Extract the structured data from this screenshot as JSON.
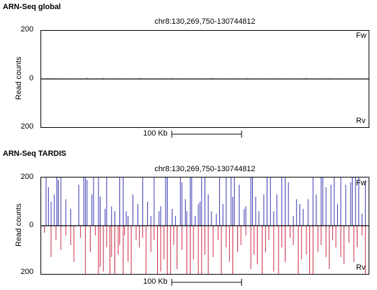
{
  "chart_data": [
    {
      "type": "bar",
      "title": "ARN-Seq global",
      "region": "chr8:130,269,750-130744812",
      "ylabel": "Read counts",
      "y_ticks": {
        "top": "200",
        "mid": "0",
        "bottom": "200"
      },
      "strand_labels": {
        "forward": "Fw",
        "reverse": "Rv"
      },
      "ylim": [
        -200,
        200
      ],
      "scale_bar": "100 Kb",
      "colors": {
        "forward": "#1f1fa8",
        "reverse": "#c8102e",
        "baseline": "#000000"
      },
      "series": [
        {
          "name": "Fw",
          "x": [
            0.02,
            0.1,
            0.19,
            0.28,
            0.4,
            0.55,
            0.63,
            0.76,
            0.88,
            0.95
          ],
          "values": [
            3,
            2,
            4,
            2,
            3,
            2,
            3,
            2,
            3,
            2
          ]
        },
        {
          "name": "Rv",
          "x": [
            0.03,
            0.06,
            0.14,
            0.22,
            0.3,
            0.37,
            0.46,
            0.52,
            0.6,
            0.67,
            0.72,
            0.81,
            0.86,
            0.93
          ],
          "values": [
            4,
            3,
            5,
            3,
            4,
            3,
            2,
            4,
            3,
            2,
            3,
            4,
            3,
            2
          ]
        }
      ]
    },
    {
      "type": "bar",
      "title": "ARN-Seq TARDIS",
      "region": "chr8:130,269,750-130744812",
      "ylabel": "Read counts",
      "y_ticks": {
        "top": "200",
        "mid": "0",
        "bottom": "200"
      },
      "strand_labels": {
        "forward": "Fw",
        "reverse": "Rv"
      },
      "ylim": [
        -200,
        200
      ],
      "scale_bar": "100 Kb",
      "colors": {
        "forward": "#1f1fa8",
        "reverse": "#c8102e",
        "baseline": "#000000"
      },
      "series": [
        {
          "name": "Fw",
          "x": [
            0.015,
            0.022,
            0.03,
            0.04,
            0.048,
            0.052,
            0.06,
            0.075,
            0.09,
            0.115,
            0.13,
            0.135,
            0.14,
            0.155,
            0.16,
            0.175,
            0.18,
            0.195,
            0.2,
            0.215,
            0.225,
            0.24,
            0.25,
            0.26,
            0.265,
            0.28,
            0.295,
            0.31,
            0.325,
            0.335,
            0.345,
            0.36,
            0.365,
            0.38,
            0.385,
            0.4,
            0.41,
            0.425,
            0.43,
            0.44,
            0.445,
            0.455,
            0.46,
            0.47,
            0.48,
            0.485,
            0.49,
            0.5,
            0.51,
            0.52,
            0.535,
            0.545,
            0.555,
            0.565,
            0.58,
            0.585,
            0.59,
            0.605,
            0.62,
            0.625,
            0.64,
            0.645,
            0.655,
            0.665,
            0.68,
            0.69,
            0.7,
            0.71,
            0.72,
            0.735,
            0.745,
            0.755,
            0.77,
            0.78,
            0.79,
            0.8,
            0.815,
            0.83,
            0.84,
            0.855,
            0.86,
            0.87,
            0.885,
            0.895,
            0.905,
            0.915,
            0.93,
            0.945,
            0.95,
            0.96,
            0.97,
            0.98,
            0.99
          ],
          "values": [
            200,
            160,
            100,
            130,
            200,
            190,
            200,
            110,
            70,
            170,
            200,
            200,
            190,
            130,
            200,
            200,
            120,
            70,
            200,
            80,
            60,
            200,
            200,
            60,
            40,
            130,
            90,
            200,
            100,
            40,
            200,
            60,
            80,
            200,
            200,
            70,
            40,
            200,
            180,
            110,
            60,
            200,
            200,
            40,
            90,
            100,
            200,
            200,
            130,
            60,
            50,
            200,
            90,
            200,
            200,
            120,
            200,
            170,
            70,
            80,
            200,
            200,
            120,
            60,
            130,
            200,
            200,
            60,
            130,
            200,
            200,
            180,
            40,
            110,
            90,
            70,
            110,
            200,
            130,
            200,
            200,
            160,
            170,
            200,
            90,
            200,
            170,
            180,
            200,
            200,
            200,
            50,
            190
          ]
        },
        {
          "name": "Rv",
          "x": [
            0.01,
            0.03,
            0.045,
            0.06,
            0.075,
            0.09,
            0.1,
            0.12,
            0.135,
            0.15,
            0.165,
            0.175,
            0.18,
            0.19,
            0.2,
            0.21,
            0.215,
            0.225,
            0.235,
            0.24,
            0.25,
            0.255,
            0.265,
            0.275,
            0.29,
            0.3,
            0.31,
            0.32,
            0.335,
            0.345,
            0.355,
            0.365,
            0.375,
            0.385,
            0.395,
            0.405,
            0.415,
            0.43,
            0.445,
            0.455,
            0.465,
            0.48,
            0.49,
            0.5,
            0.51,
            0.525,
            0.54,
            0.55,
            0.565,
            0.575,
            0.585,
            0.6,
            0.61,
            0.625,
            0.64,
            0.65,
            0.66,
            0.675,
            0.685,
            0.695,
            0.71,
            0.725,
            0.735,
            0.745,
            0.76,
            0.77,
            0.785,
            0.795,
            0.81,
            0.82,
            0.83,
            0.845,
            0.855,
            0.87,
            0.88,
            0.89,
            0.9,
            0.915,
            0.925,
            0.94,
            0.955,
            0.965,
            0.98,
            0.99
          ],
          "values": [
            -30,
            -130,
            -60,
            -100,
            -40,
            -80,
            -150,
            -50,
            -200,
            -110,
            -40,
            -200,
            -170,
            -190,
            -90,
            -200,
            -130,
            -200,
            -120,
            -80,
            -200,
            -40,
            -150,
            -200,
            -60,
            -90,
            -50,
            -200,
            -110,
            -60,
            -200,
            -190,
            -140,
            -200,
            -200,
            -80,
            -180,
            -100,
            -200,
            -200,
            -140,
            -200,
            -200,
            -120,
            -200,
            -130,
            -60,
            -200,
            -90,
            -150,
            -200,
            -110,
            -80,
            -40,
            -180,
            -120,
            -160,
            -200,
            -110,
            -60,
            -190,
            -200,
            -90,
            -150,
            -50,
            -80,
            -200,
            -140,
            -120,
            -200,
            -200,
            -110,
            -80,
            -130,
            -180,
            -60,
            -90,
            -130,
            -160,
            -70,
            -150,
            -90,
            -40,
            -200
          ]
        }
      ]
    }
  ]
}
